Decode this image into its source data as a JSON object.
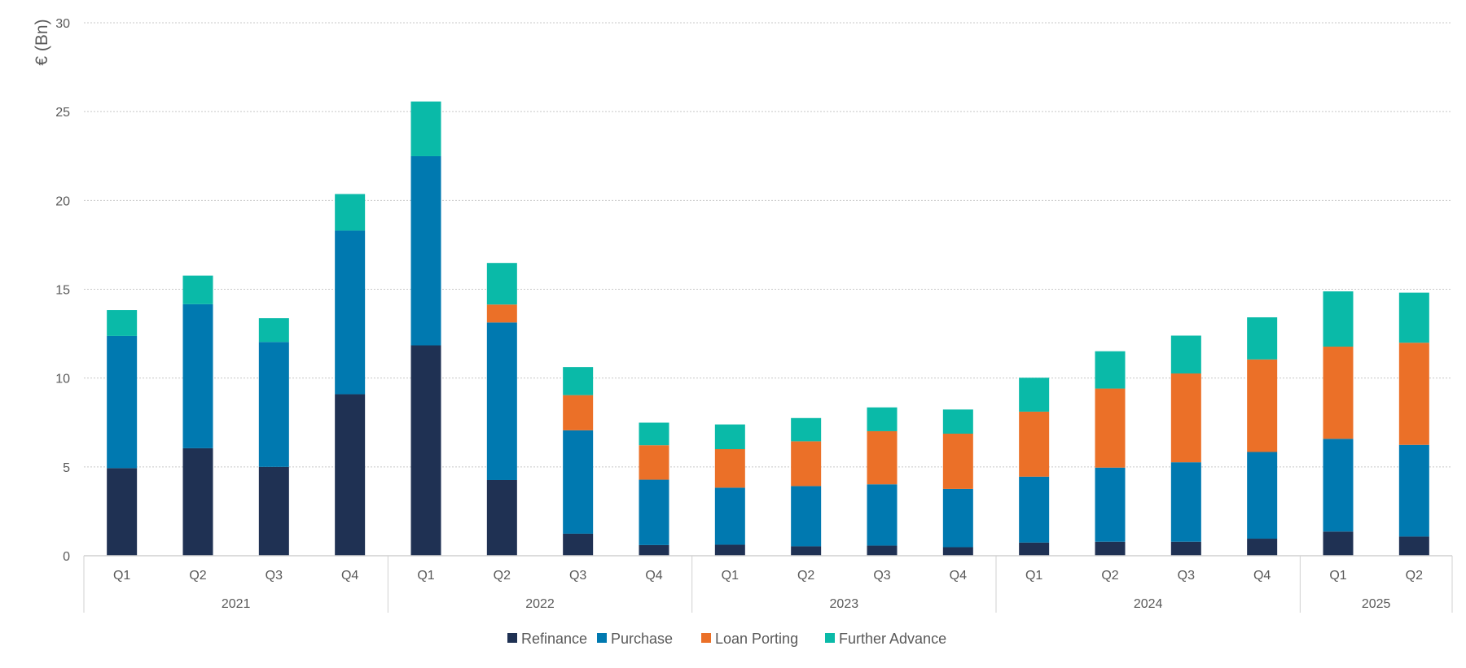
{
  "chart_data": {
    "type": "bar",
    "stacked": true,
    "title": "",
    "xlabel": "",
    "ylabel": "€ (Bn)",
    "ylim": [
      0,
      30
    ],
    "yticks": [
      0,
      5,
      10,
      15,
      20,
      25,
      30
    ],
    "grid": true,
    "legend_position": "bottom",
    "groups": [
      {
        "label": "2021",
        "count": 4
      },
      {
        "label": "2022",
        "count": 4
      },
      {
        "label": "2023",
        "count": 4
      },
      {
        "label": "2024",
        "count": 4
      },
      {
        "label": "2025",
        "count": 2
      }
    ],
    "categories": [
      "Q1",
      "Q2",
      "Q3",
      "Q4",
      "Q1",
      "Q2",
      "Q3",
      "Q4",
      "Q1",
      "Q2",
      "Q3",
      "Q4",
      "Q1",
      "Q2",
      "Q3",
      "Q4",
      "Q1",
      "Q2"
    ],
    "series": [
      {
        "name": "Refinance",
        "color": "#1f3153",
        "values": [
          4.93,
          6.05,
          5.0,
          9.09,
          11.84,
          4.26,
          1.24,
          0.6,
          0.62,
          0.53,
          0.57,
          0.48,
          0.74,
          0.79,
          0.79,
          0.96,
          1.36,
          1.08
        ]
      },
      {
        "name": "Purchase",
        "color": "#0079b0",
        "values": [
          7.44,
          8.11,
          7.03,
          9.21,
          10.65,
          8.87,
          5.82,
          3.68,
          3.21,
          3.39,
          3.45,
          3.28,
          3.71,
          4.17,
          4.47,
          4.88,
          5.22,
          5.16
        ]
      },
      {
        "name": "Loan Porting",
        "color": "#eb7028",
        "values": [
          0,
          0,
          0,
          0,
          0,
          1.01,
          1.98,
          1.94,
          2.17,
          2.52,
          2.99,
          3.11,
          3.66,
          4.45,
          5.0,
          5.21,
          5.19,
          5.75
        ]
      },
      {
        "name": "Further Advance",
        "color": "#0abaa8",
        "values": [
          1.46,
          1.61,
          1.34,
          2.06,
          3.08,
          2.34,
          1.58,
          1.27,
          1.39,
          1.31,
          1.34,
          1.36,
          1.91,
          2.1,
          2.13,
          2.37,
          3.11,
          2.82
        ]
      }
    ]
  }
}
